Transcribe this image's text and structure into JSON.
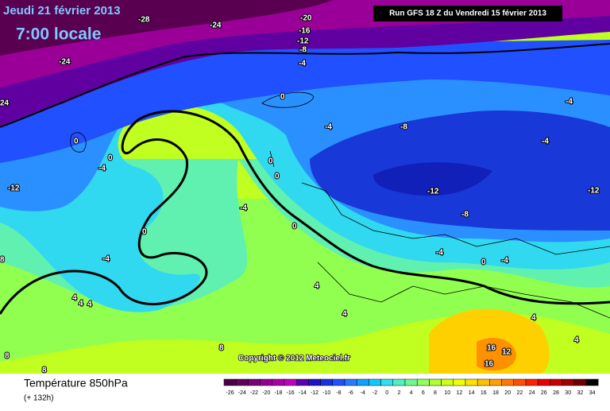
{
  "header": {
    "date": "Jeudi 21 février 2013",
    "time": "7:00 locale",
    "run": "Run GFS 18 Z du Vendredi 15 février 2013"
  },
  "copyright": "Copyright © 2012 Meteociel.fr",
  "footer": {
    "title": "Température 850hPa",
    "subtitle": "(+ 132h)"
  },
  "map": {
    "contour_labels": [
      "-28",
      "-24",
      "-20",
      "-16",
      "-12",
      "-8",
      "-24",
      "-4",
      "24",
      "0",
      "0",
      "0",
      "-4",
      "-4",
      "-8",
      "-4",
      "-4",
      "0",
      "0",
      "-12",
      "-12",
      "-12",
      "-8",
      "-4",
      "0",
      "0",
      "-4",
      "8",
      "-4",
      "0",
      "-4",
      "4",
      "4",
      "4",
      "4",
      "4",
      "4",
      "8",
      "8",
      "8",
      "16",
      "12",
      "16",
      "4"
    ]
  },
  "legend": {
    "labels": [
      -26,
      -24,
      -22,
      -20,
      -18,
      -16,
      -14,
      -12,
      -10,
      -8,
      -6,
      -4,
      -2,
      0,
      2,
      4,
      6,
      8,
      10,
      12,
      14,
      16,
      18,
      20,
      22,
      24,
      26,
      28,
      30,
      32,
      34
    ],
    "colors": [
      "#4a0048",
      "#62005e",
      "#7a0078",
      "#920092",
      "#aa00aa",
      "#c000c0",
      "#5a00b0",
      "#2010c8",
      "#1830e0",
      "#2050ff",
      "#2a78ff",
      "#10a0ff",
      "#10c8ff",
      "#30e0f0",
      "#50f0c0",
      "#70f890",
      "#90ff60",
      "#b0ff30",
      "#d0ff10",
      "#f0ff00",
      "#ffe000",
      "#ffc000",
      "#ffa000",
      "#ff7800",
      "#ff5000",
      "#ff2000",
      "#e80000",
      "#c80000",
      "#a00000",
      "#700000",
      "#000000"
    ]
  }
}
